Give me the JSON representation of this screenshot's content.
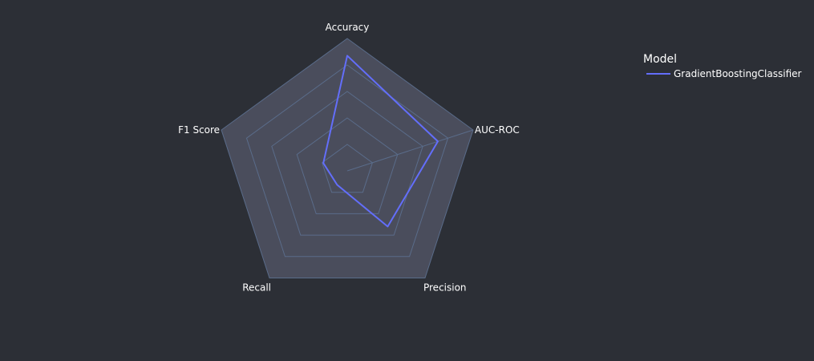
{
  "chart_data": {
    "type": "radar",
    "axes": [
      "Accuracy",
      "AUC-ROC",
      "Precision",
      "Recall",
      "F1 Score"
    ],
    "series": [
      {
        "name": "GradientBoostingClassifier",
        "values": [
          0.87,
          0.72,
          0.52,
          0.13,
          0.19
        ]
      }
    ],
    "range": [
      0,
      1
    ],
    "grid_levels": [
      0.2,
      0.4,
      0.6,
      0.8,
      1.0
    ],
    "grid": true,
    "legend": {
      "title": "Model",
      "position": "top-right"
    }
  },
  "colors": {
    "background": "#2c2f36",
    "polar_fill": "#4a4d5c",
    "grid": "#5a6c8a",
    "series": [
      "#636efa"
    ]
  }
}
